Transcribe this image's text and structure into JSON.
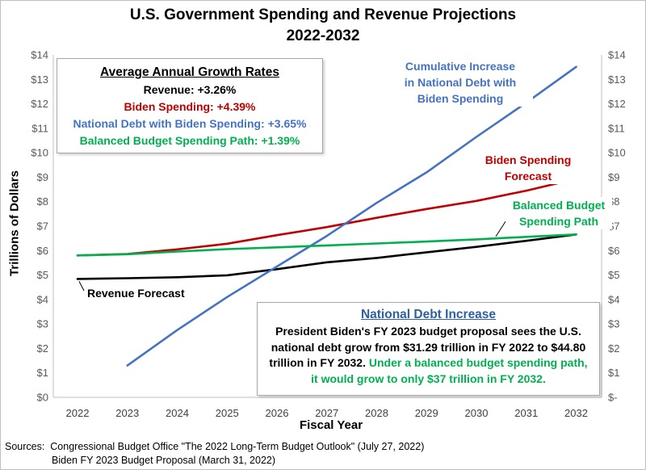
{
  "chart_data": {
    "type": "line",
    "title": "U.S. Government Spending and Revenue Projections",
    "subtitle": "2022-2032",
    "xlabel": "Fiscal Year",
    "ylabel": "Trillions of Dollars",
    "x": [
      2022,
      2023,
      2024,
      2025,
      2026,
      2027,
      2028,
      2029,
      2030,
      2031,
      2032
    ],
    "ylim": [
      0,
      14
    ],
    "y_ticks_left": [
      "$0",
      "$1",
      "$2",
      "$3",
      "$4",
      "$5",
      "$6",
      "$7",
      "$8",
      "$9",
      "$10",
      "$11",
      "$12",
      "$13",
      "$14"
    ],
    "y_ticks_right": [
      "$-",
      "$1",
      "$2",
      "$3",
      "$4",
      "$5",
      "$6",
      "$7",
      "$8",
      "$9",
      "$10",
      "$11",
      "$12",
      "$13",
      "$14"
    ],
    "grid": false,
    "series": [
      {
        "key": "revenue",
        "color": "#000000",
        "values": [
          4.84,
          4.87,
          4.91,
          4.99,
          5.24,
          5.52,
          5.7,
          5.93,
          6.15,
          6.4,
          6.66
        ]
      },
      {
        "key": "biden",
        "color": "#c00000",
        "values": [
          5.8,
          5.86,
          6.05,
          6.28,
          6.63,
          6.96,
          7.34,
          7.7,
          8.03,
          8.45,
          8.93
        ]
      },
      {
        "key": "debt",
        "color": "#4472c4",
        "values": [
          null,
          1.3,
          2.75,
          4.1,
          5.35,
          6.6,
          7.95,
          9.2,
          10.65,
          12.05,
          13.51
        ]
      },
      {
        "key": "balanced",
        "color": "#00b050",
        "values": [
          5.8,
          5.85,
          5.96,
          6.06,
          6.13,
          6.21,
          6.29,
          6.37,
          6.46,
          6.56,
          6.66
        ]
      }
    ]
  },
  "growth_box": {
    "heading": "Average Annual Growth Rates",
    "revenue": "Revenue: +3.26%",
    "biden": "Biden Spending: +4.39%",
    "debt": "National Debt with Biden Spending: +3.65%",
    "balanced": "Balanced Budget Spending Path: +1.39%"
  },
  "annotations": {
    "debt_label": [
      "Cumulative Increase",
      "in National Debt with",
      "Biden Spending"
    ],
    "biden_label": [
      "Biden Spending",
      "Forecast"
    ],
    "balanced_label": [
      "Balanced Budget",
      "Spending Path"
    ],
    "revenue_label": "Revenue Forecast"
  },
  "note_box": {
    "heading": "National Debt Increase",
    "body": "President Biden's FY 2023 budget proposal sees the U.S. national debt grow from $31.29 trillion in FY 2022 to $44.80 trillion in FY 2032.",
    "highlight": "Under a balanced budget spending path, it would grow to only $37 trillion in FY 2032."
  },
  "sources": {
    "line1": "Sources:  Congressional Budget Office \"The 2022 Long-Term Budget Outlook\" (July 27, 2022)",
    "line2": "Biden FY 2023 Budget Proposal (March 31, 2022)"
  },
  "colors": {
    "revenue": "#000000",
    "biden": "#c00000",
    "debt": "#4472c4",
    "balanced": "#00b050"
  }
}
